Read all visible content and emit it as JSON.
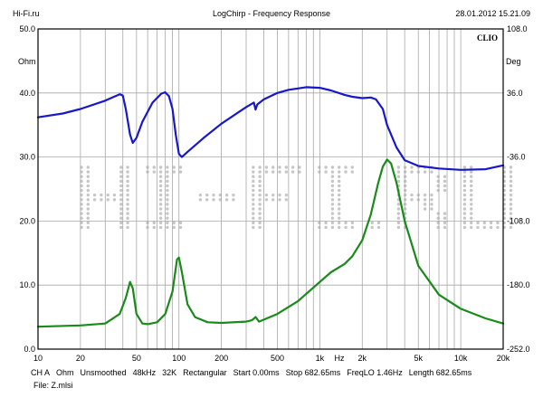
{
  "header": {
    "left": "Hi-Fi.ru",
    "center": "LogChirp - Frequency Response",
    "right": "28.01.2012 15.21.09"
  },
  "brand": "CLIO",
  "watermark": "HI-FI.RU",
  "colors": {
    "impedance": "#1818c8",
    "phase": "#1a8a1a",
    "grid": "#a8a8a8",
    "frame": "#000000",
    "watermark": "#c6c6c6"
  },
  "chart_data": {
    "type": "line",
    "xscale": "log",
    "xlim": [
      10,
      20000
    ],
    "x_ticks": [
      10,
      20,
      50,
      100,
      200,
      500,
      1000,
      2000,
      5000,
      10000,
      20000
    ],
    "x_tick_labels": [
      "10",
      "20",
      "50",
      "100",
      "200",
      "500",
      "1k",
      "2k",
      "5k",
      "10k",
      "20k"
    ],
    "xlabel": "Hz",
    "left_axis": {
      "unit": "Ohm",
      "lim": [
        0,
        50
      ],
      "ticks": [
        0,
        10,
        20,
        30,
        40,
        50
      ],
      "tick_labels": [
        "0.0",
        "10.0",
        "20.0",
        "30.0",
        "40.0",
        "50.0"
      ]
    },
    "right_axis": {
      "unit": "Deg",
      "lim": [
        -252,
        108
      ],
      "ticks": [
        -252,
        -180,
        -108,
        -36,
        36,
        108
      ],
      "tick_labels": [
        "-252.0",
        "-180.0",
        "-108.0",
        "-36.0",
        "36.0",
        "108.0"
      ]
    },
    "grid": true,
    "series": [
      {
        "axis": "left",
        "color": "#1818c8",
        "points": [
          [
            10,
            36.2
          ],
          [
            15,
            36.8
          ],
          [
            20,
            37.5
          ],
          [
            30,
            38.8
          ],
          [
            38,
            39.8
          ],
          [
            40,
            39.6
          ],
          [
            42,
            37.5
          ],
          [
            45,
            33.5
          ],
          [
            47,
            32.2
          ],
          [
            50,
            33
          ],
          [
            55,
            35.5
          ],
          [
            65,
            38.5
          ],
          [
            75,
            39.9
          ],
          [
            80,
            40.1
          ],
          [
            85,
            39.5
          ],
          [
            90,
            37.5
          ],
          [
            95,
            33.5
          ],
          [
            100,
            30.5
          ],
          [
            105,
            30
          ],
          [
            115,
            30.8
          ],
          [
            150,
            33
          ],
          [
            200,
            35.2
          ],
          [
            300,
            37.8
          ],
          [
            340,
            38.5
          ],
          [
            350,
            37.4
          ],
          [
            360,
            38.2
          ],
          [
            400,
            39
          ],
          [
            500,
            40
          ],
          [
            600,
            40.5
          ],
          [
            700,
            40.7
          ],
          [
            800,
            40.9
          ],
          [
            1000,
            40.8
          ],
          [
            1200,
            40.4
          ],
          [
            1500,
            39.7
          ],
          [
            1700,
            39.4
          ],
          [
            2000,
            39.2
          ],
          [
            2300,
            39.3
          ],
          [
            2500,
            39
          ],
          [
            2800,
            37.5
          ],
          [
            3000,
            35
          ],
          [
            3500,
            31.5
          ],
          [
            4000,
            29.5
          ],
          [
            5000,
            28.6
          ],
          [
            7000,
            28.2
          ],
          [
            10000,
            28
          ],
          [
            15000,
            28.1
          ],
          [
            20000,
            28.7
          ]
        ]
      },
      {
        "axis": "left",
        "color": "#1a8a1a",
        "points": [
          [
            10,
            3.5
          ],
          [
            20,
            3.7
          ],
          [
            30,
            4
          ],
          [
            38,
            5.5
          ],
          [
            42,
            8
          ],
          [
            45,
            10.5
          ],
          [
            47,
            9.5
          ],
          [
            50,
            5.5
          ],
          [
            55,
            4
          ],
          [
            60,
            3.9
          ],
          [
            70,
            4.2
          ],
          [
            80,
            5.5
          ],
          [
            90,
            9
          ],
          [
            97,
            14
          ],
          [
            100,
            14.3
          ],
          [
            105,
            12
          ],
          [
            115,
            7
          ],
          [
            130,
            5
          ],
          [
            160,
            4.2
          ],
          [
            200,
            4.1
          ],
          [
            300,
            4.3
          ],
          [
            330,
            4.5
          ],
          [
            350,
            5
          ],
          [
            370,
            4.3
          ],
          [
            500,
            5.5
          ],
          [
            700,
            7.5
          ],
          [
            1000,
            10.5
          ],
          [
            1200,
            12
          ],
          [
            1500,
            13.3
          ],
          [
            1700,
            14.5
          ],
          [
            2000,
            17
          ],
          [
            2300,
            21
          ],
          [
            2600,
            26
          ],
          [
            2800,
            28.5
          ],
          [
            3000,
            29.6
          ],
          [
            3200,
            29
          ],
          [
            3500,
            26
          ],
          [
            4000,
            20
          ],
          [
            5000,
            13
          ],
          [
            7000,
            8.5
          ],
          [
            10000,
            6.3
          ],
          [
            15000,
            4.8
          ],
          [
            20000,
            4
          ]
        ]
      }
    ]
  },
  "footer": {
    "channel": "CH A",
    "unit": "Ohm",
    "smoothing": "Unsmoothed",
    "sample_rate": "48kHz",
    "fft_size": "32K",
    "window": "Rectangular",
    "start": "Start 0.00ms",
    "stop": "Stop 682.65ms",
    "freq_lo": "FreqLO 1.46Hz",
    "length": "Length 682.65ms",
    "file": "File: Z.mlsi"
  }
}
